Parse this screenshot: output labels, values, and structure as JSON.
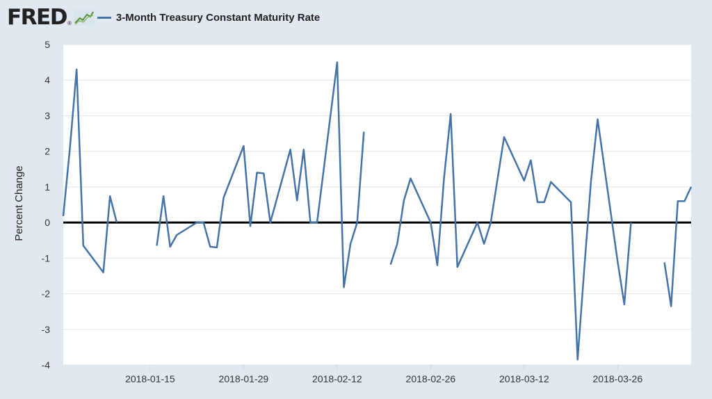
{
  "header": {
    "logo": "FRED",
    "logo_icon": "line-chart-icon",
    "series_label": "3-Month Treasury Constant Maturity Rate"
  },
  "colors": {
    "background": "#e1e9f0",
    "plot_background": "#ffffff",
    "series": "#4572a7",
    "zero_line": "#000000",
    "grid": "#e6e6e6"
  },
  "chart_data": {
    "type": "line",
    "title": "",
    "xlabel": "",
    "ylabel": "Percent Change",
    "ylim": [
      -4,
      5
    ],
    "xlim": [
      "2018-01-02",
      "2018-04-06"
    ],
    "grid": true,
    "legend_position": "top-left",
    "x_ticks": [
      "2018-01-15",
      "2018-01-29",
      "2018-02-12",
      "2018-02-26",
      "2018-03-12",
      "2018-03-26"
    ],
    "y_ticks": [
      -4,
      -3,
      -2,
      -1,
      0,
      1,
      2,
      3,
      4,
      5
    ],
    "series": [
      {
        "name": "3-Month Treasury Constant Maturity Rate",
        "x": [
          "2018-01-02",
          "2018-01-03",
          "2018-01-04",
          "2018-01-05",
          "2018-01-08",
          "2018-01-09",
          "2018-01-10",
          "2018-01-11",
          "2018-01-12",
          "2018-01-15",
          "2018-01-16",
          "2018-01-17",
          "2018-01-18",
          "2018-01-19",
          "2018-01-22",
          "2018-01-23",
          "2018-01-24",
          "2018-01-25",
          "2018-01-26",
          "2018-01-29",
          "2018-01-30",
          "2018-01-31",
          "2018-02-01",
          "2018-02-02",
          "2018-02-05",
          "2018-02-06",
          "2018-02-07",
          "2018-02-08",
          "2018-02-09",
          "2018-02-12",
          "2018-02-13",
          "2018-02-14",
          "2018-02-15",
          "2018-02-16",
          "2018-02-19",
          "2018-02-20",
          "2018-02-21",
          "2018-02-22",
          "2018-02-23",
          "2018-02-26",
          "2018-02-27",
          "2018-02-28",
          "2018-03-01",
          "2018-03-02",
          "2018-03-05",
          "2018-03-06",
          "2018-03-07",
          "2018-03-08",
          "2018-03-09",
          "2018-03-12",
          "2018-03-13",
          "2018-03-14",
          "2018-03-15",
          "2018-03-16",
          "2018-03-19",
          "2018-03-20",
          "2018-03-21",
          "2018-03-22",
          "2018-03-23",
          "2018-03-26",
          "2018-03-27",
          "2018-03-28",
          "2018-03-29",
          "2018-03-30",
          "2018-04-02",
          "2018-04-03",
          "2018-04-04",
          "2018-04-05",
          "2018-04-06"
        ],
        "values": [
          0.18,
          2.1,
          4.3,
          -0.65,
          -1.4,
          0.74,
          0.0,
          null,
          null,
          null,
          -0.65,
          0.74,
          -0.68,
          -0.35,
          0.0,
          0.0,
          -0.68,
          -0.7,
          0.7,
          2.15,
          -0.1,
          1.4,
          1.38,
          0.0,
          2.05,
          0.62,
          2.05,
          0.0,
          0.0,
          4.5,
          -1.82,
          -0.6,
          0.0,
          2.55,
          null,
          -1.18,
          -0.6,
          0.62,
          1.24,
          0.0,
          -1.2,
          1.25,
          3.05,
          -1.25,
          0.0,
          -0.6,
          0.0,
          1.2,
          2.4,
          1.18,
          1.75,
          0.57,
          0.57,
          1.14,
          0.57,
          -3.85,
          -1.3,
          1.15,
          2.9,
          -1.1,
          -2.3,
          0.0,
          null,
          null,
          -1.12,
          -2.35,
          0.6,
          0.6,
          1.0
        ]
      }
    ]
  }
}
